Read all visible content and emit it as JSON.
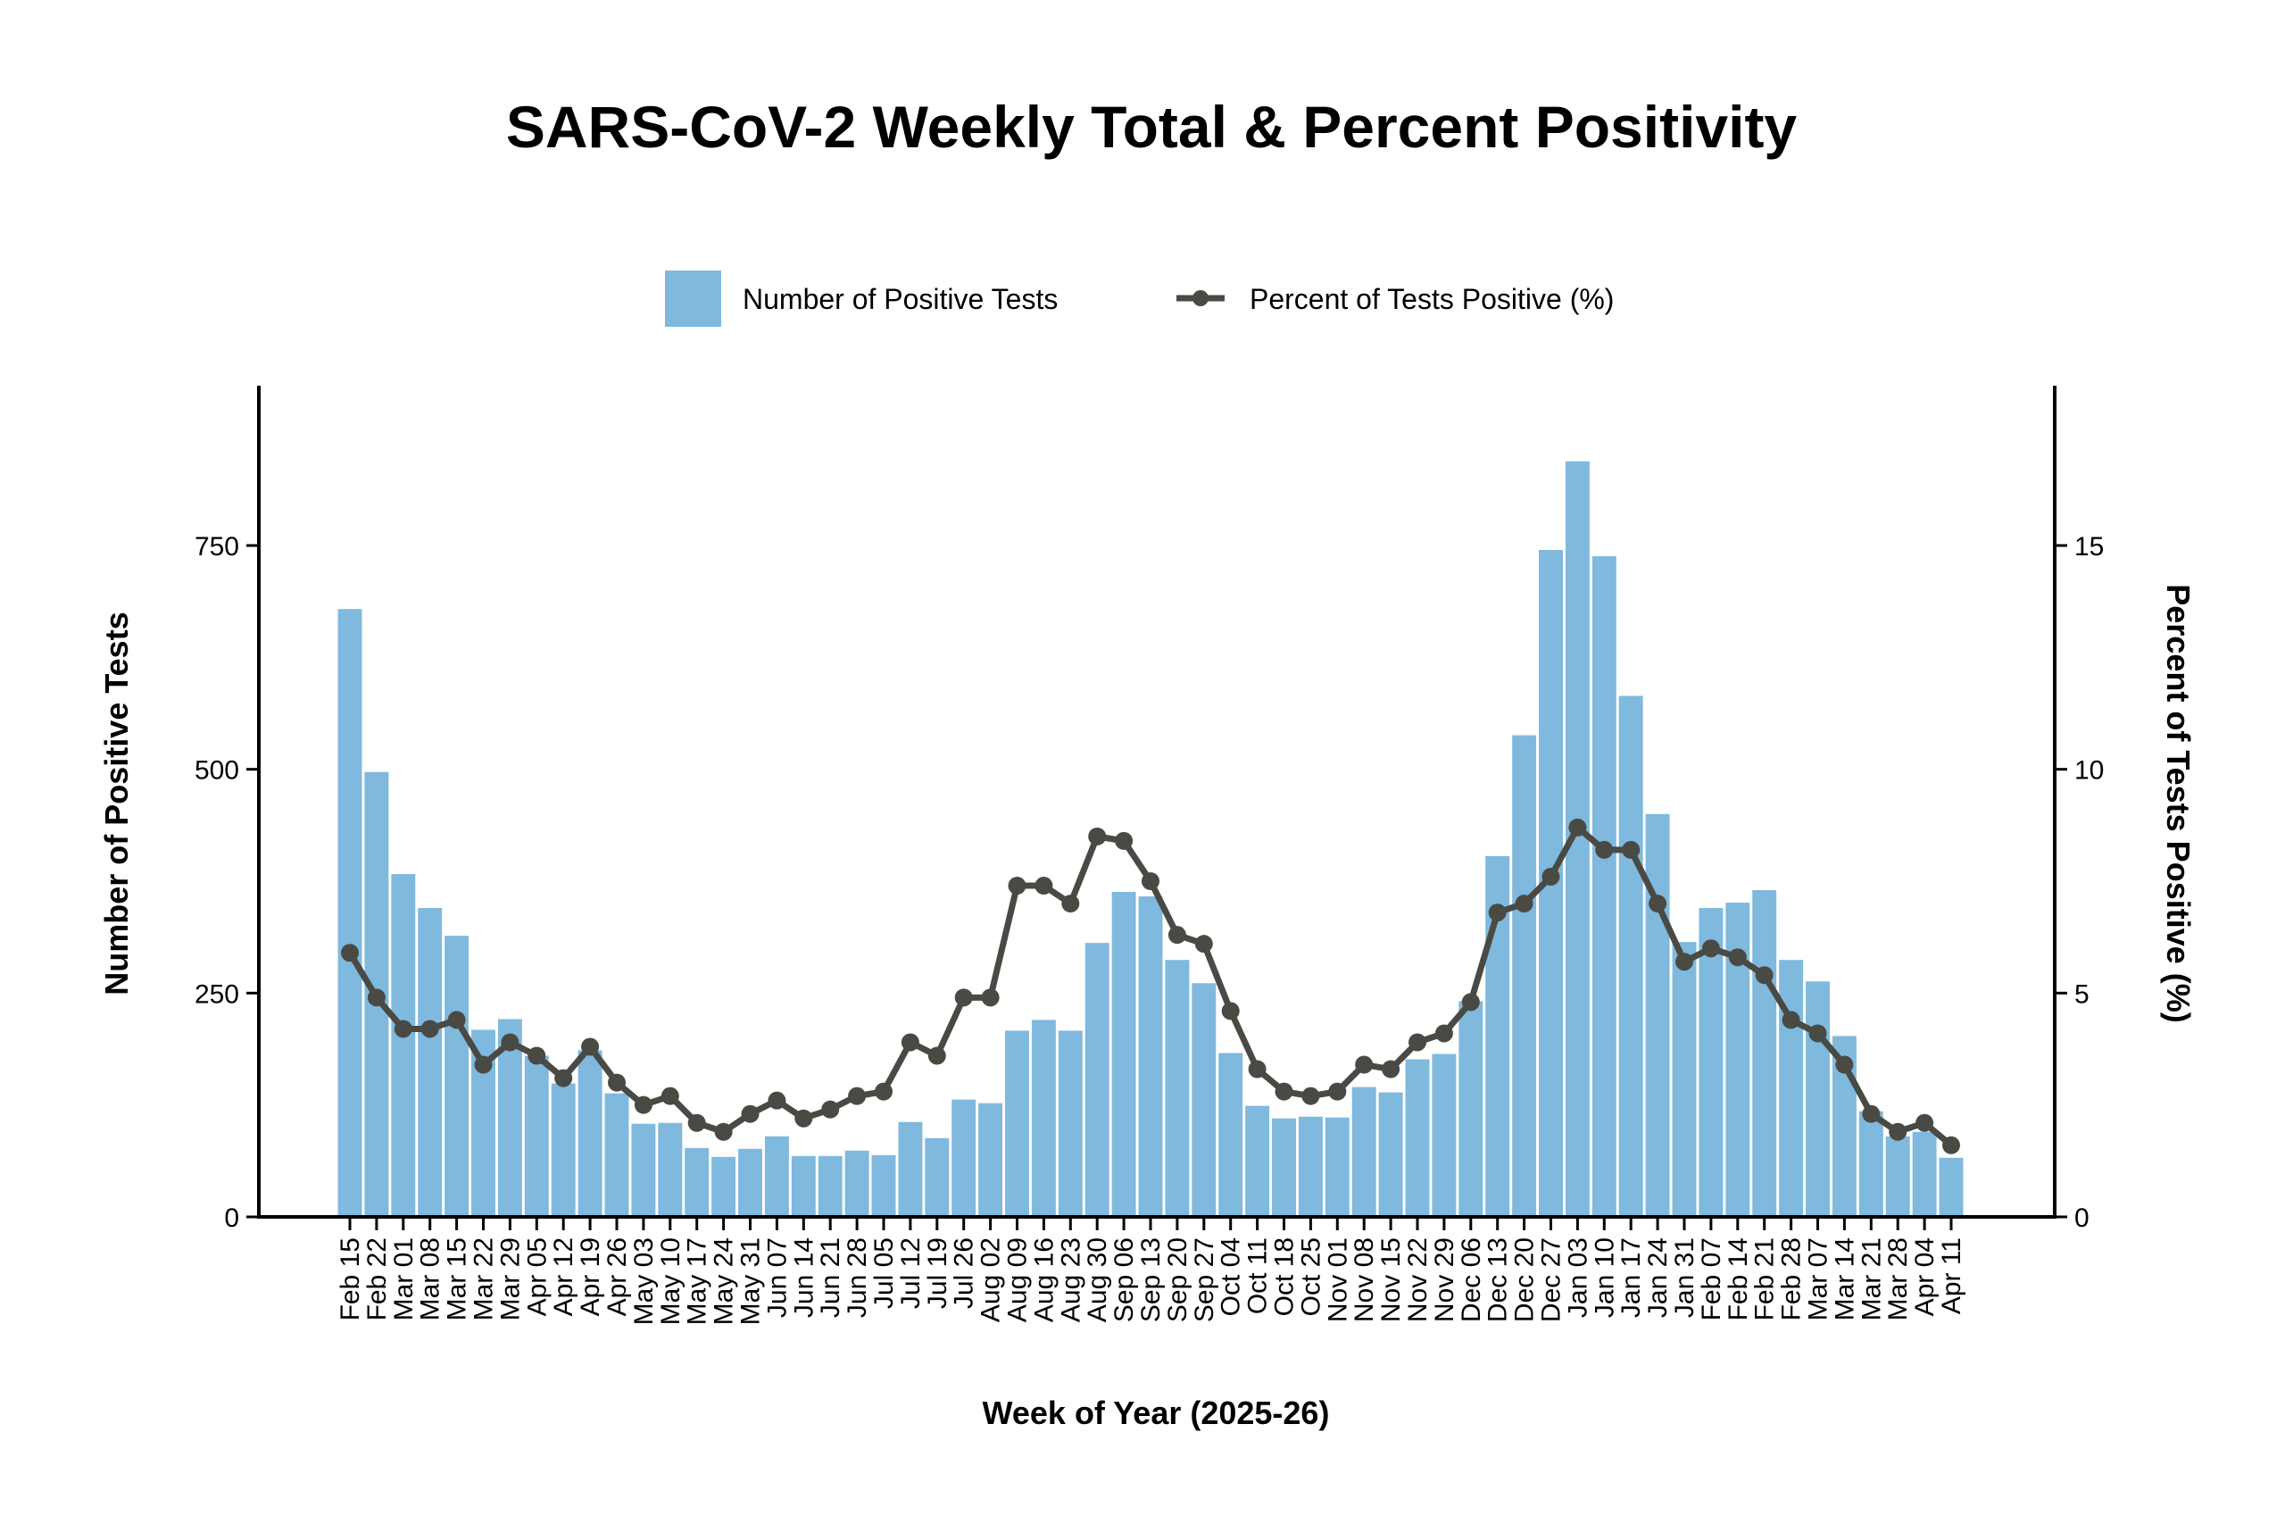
{
  "chart_data": {
    "type": "bar+line",
    "title": "SARS-CoV-2 Weekly Total & Percent Positivity",
    "xlabel": "Week of Year (2025-26)",
    "ylabel_left": "Number of Positive Tests",
    "ylabel_right": "Percent of Tests Positive (%)",
    "ylim_left": [
      0,
      920
    ],
    "ylim_right": [
      0,
      18.4
    ],
    "yticks_left": [
      0,
      250,
      500,
      750
    ],
    "yticks_right": [
      0,
      5,
      10,
      15
    ],
    "grid": false,
    "legend_position": "top-center",
    "categories": [
      "Feb 15",
      "Feb 22",
      "Mar 01",
      "Mar 08",
      "Mar 15",
      "Mar 22",
      "Mar 29",
      "Apr 05",
      "Apr 12",
      "Apr 19",
      "Apr 26",
      "May 03",
      "May 10",
      "May 17",
      "May 24",
      "May 31",
      "Jun 07",
      "Jun 14",
      "Jun 21",
      "Jun 28",
      "Jul 05",
      "Jul 12",
      "Jul 19",
      "Jul 26",
      "Aug 02",
      "Aug 09",
      "Aug 16",
      "Aug 23",
      "Aug 30",
      "Sep 06",
      "Sep 13",
      "Sep 20",
      "Sep 27",
      "Oct 04",
      "Oct 11",
      "Oct 18",
      "Oct 25",
      "Nov 01",
      "Nov 08",
      "Nov 15",
      "Nov 22",
      "Nov 29",
      "Dec 06",
      "Dec 13",
      "Dec 20",
      "Dec 27",
      "Jan 03",
      "Jan 10",
      "Jan 17",
      "Jan 24",
      "Jan 31",
      "Feb 07",
      "Feb 14",
      "Feb 21",
      "Feb 28",
      "Mar 07",
      "Mar 14",
      "Mar 21",
      "Mar 28",
      "Apr 04",
      "Apr 11"
    ],
    "series": [
      {
        "name": "Number of Positive Tests",
        "type": "bar",
        "axis": "left",
        "color": "#7fb9de",
        "values": [
          679,
          497,
          383,
          345,
          314,
          209,
          221,
          180,
          149,
          186,
          138,
          104,
          105,
          77,
          67,
          76,
          90,
          68,
          68,
          74,
          69,
          106,
          88,
          131,
          127,
          208,
          220,
          208,
          306,
          363,
          358,
          287,
          261,
          183,
          124,
          110,
          112,
          111,
          145,
          139,
          176,
          182,
          241,
          403,
          538,
          745,
          844,
          738,
          582,
          450,
          307,
          345,
          351,
          365,
          287,
          263,
          202,
          118,
          90,
          95,
          66
        ]
      },
      {
        "name": "Percent of Tests Positive (%)",
        "type": "line",
        "axis": "right",
        "color": "#4a4a45",
        "values": [
          5.9,
          4.9,
          4.2,
          4.2,
          4.4,
          3.4,
          3.9,
          3.6,
          3.1,
          3.8,
          3.0,
          2.5,
          2.7,
          2.1,
          1.9,
          2.3,
          2.6,
          2.2,
          2.4,
          2.7,
          2.8,
          3.9,
          3.6,
          4.9,
          4.9,
          7.4,
          7.4,
          7.0,
          8.5,
          8.4,
          7.5,
          6.3,
          6.1,
          4.6,
          3.3,
          2.8,
          2.7,
          2.8,
          3.4,
          3.3,
          3.9,
          4.1,
          4.8,
          6.8,
          7.0,
          7.6,
          8.7,
          8.2,
          8.2,
          7.0,
          5.7,
          6.0,
          5.8,
          5.4,
          4.4,
          4.1,
          3.4,
          2.3,
          1.9,
          2.1,
          1.6
        ]
      }
    ]
  }
}
